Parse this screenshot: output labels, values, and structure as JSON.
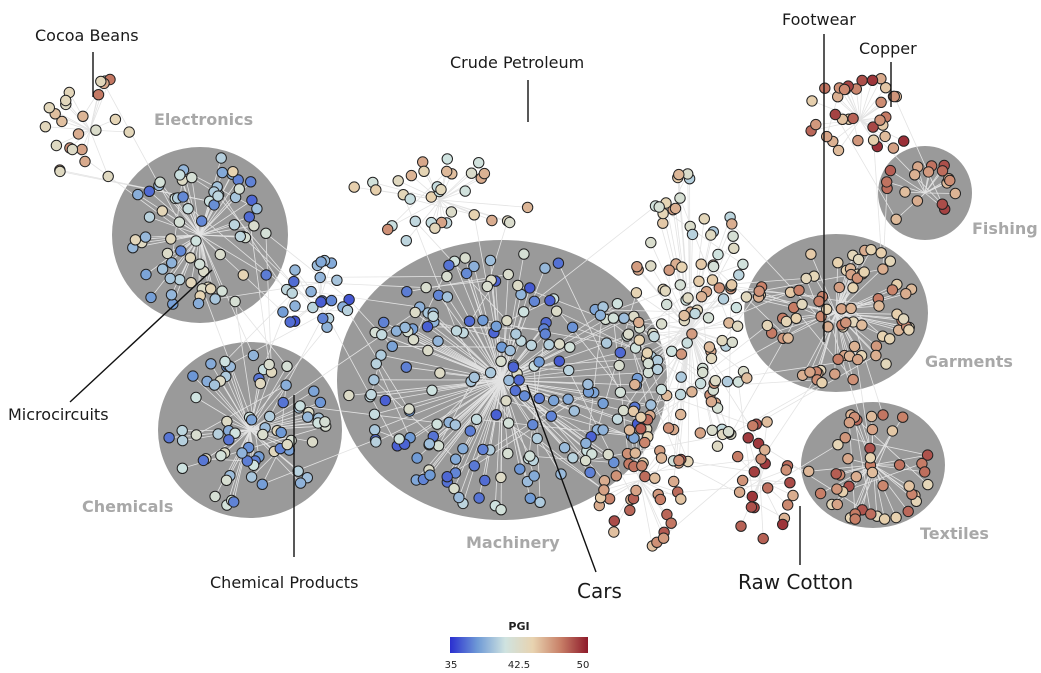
{
  "title": "",
  "cluster_labels": {
    "electronics": "Electronics",
    "chemicals": "Chemicals",
    "machinery": "Machinery",
    "fishing": "Fishing",
    "garments": "Garments",
    "textiles": "Textiles"
  },
  "product_labels": {
    "cocoa_beans": "Cocoa Beans",
    "crude_petroleum": "Crude Petroleum",
    "footwear": "Footwear",
    "copper": "Copper",
    "microcircuits": "Microcircuits",
    "chemical_products": "Chemical Products",
    "cars": "Cars",
    "raw_cotton": "Raw Cotton"
  },
  "legend": {
    "title": "PGI",
    "min_label": "35",
    "mid_label": "42.5",
    "max_label": "50",
    "min": 35,
    "max": 50,
    "stops": [
      "#2a2fd0",
      "#6f9ad6",
      "#cfe3e0",
      "#e8d3b0",
      "#c88068",
      "#8e1a2a"
    ]
  },
  "colors": {
    "cluster_fill": "#9a9a9a",
    "edge": "#e3e3e3",
    "node_stroke": "#222222"
  }
}
